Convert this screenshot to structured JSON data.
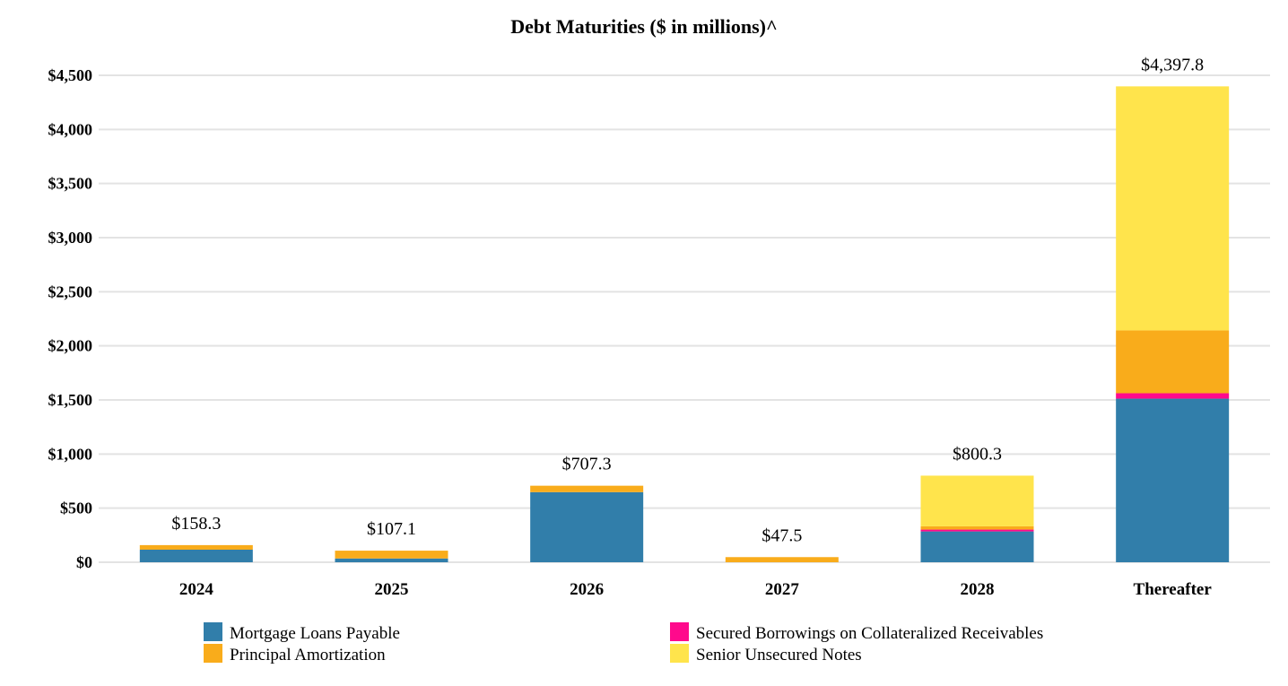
{
  "chart_data": {
    "type": "bar",
    "stacked": true,
    "title": "Debt Maturities ($ in millions)^",
    "xlabel": "",
    "ylabel": "",
    "ylim": [
      0,
      4500
    ],
    "yticks": [
      0,
      500,
      1000,
      1500,
      2000,
      2500,
      3000,
      3500,
      4000,
      4500
    ],
    "ytick_labels": [
      "$0",
      "$500",
      "$1,000",
      "$1,500",
      "$2,000",
      "$2,500",
      "$3,000",
      "$3,500",
      "$4,000",
      "$4,500"
    ],
    "grid": true,
    "legend_position": "bottom",
    "categories": [
      "2024",
      "2025",
      "2026",
      "2027",
      "2028",
      "Thereafter"
    ],
    "series": [
      {
        "name": "Mortgage Loans Payable",
        "color": "#317EAA",
        "values": [
          116,
          35,
          648,
          0,
          285,
          1512
        ]
      },
      {
        "name": "Secured Borrowings on Collateralized Receivables",
        "color": "#FF0A8C",
        "values": [
          0,
          0,
          0,
          0,
          17,
          50
        ]
      },
      {
        "name": "Principal Amortization",
        "color": "#F9AC1B",
        "values": [
          42.3,
          72.1,
          59.3,
          47.5,
          30,
          581
        ]
      },
      {
        "name": "Senior Unsecured Notes",
        "color": "#FFE44C",
        "values": [
          0,
          0,
          0,
          0,
          468.3,
          2254.8
        ]
      }
    ],
    "totals": [
      158.3,
      107.1,
      707.3,
      47.5,
      800.3,
      4397.8
    ],
    "total_labels": [
      "$158.3",
      "$107.1",
      "$707.3",
      "$47.5",
      "$800.3",
      "$4,397.8"
    ]
  }
}
